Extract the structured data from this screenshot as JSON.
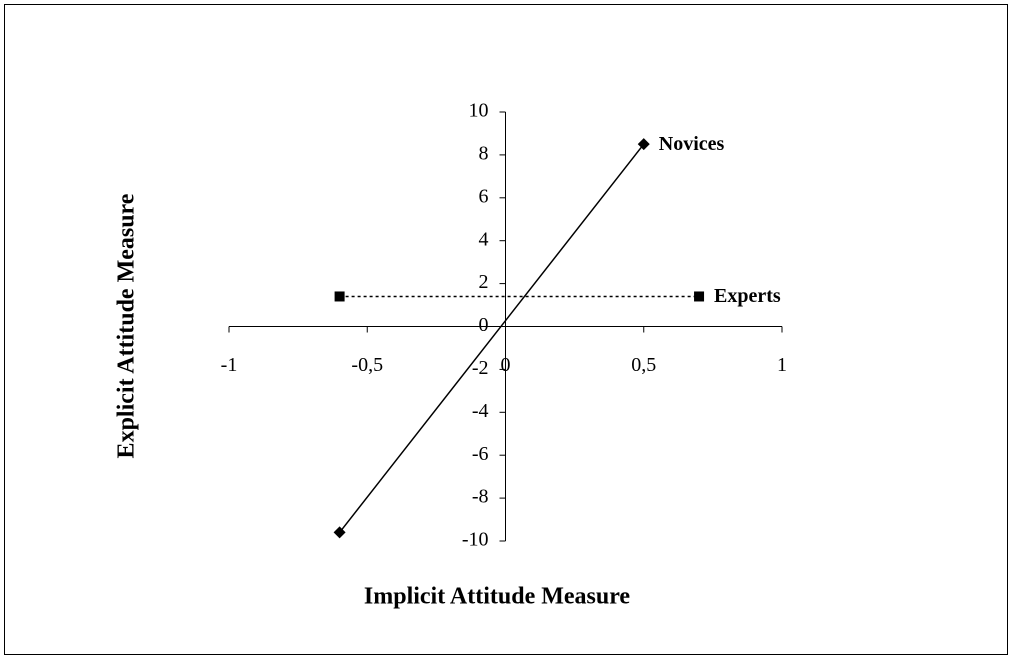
{
  "chart_data": {
    "type": "line",
    "xlabel": "Implicit Attitude Measure",
    "ylabel": "Explicit Attitude Measure",
    "xlim": [
      -1,
      1
    ],
    "xticks": [
      -1,
      {
        "value": -0.5,
        "label": "-0,5"
      },
      0,
      {
        "value": 0.5,
        "label": "0,5"
      },
      1
    ],
    "ylim": [
      -10,
      10
    ],
    "yticks": [
      -10,
      -8,
      -6,
      -4,
      -2,
      0,
      2,
      4,
      6,
      8,
      10
    ],
    "grid": false,
    "series": [
      {
        "name": "Novices",
        "color": "#000000",
        "marker": "diamond",
        "line_style": "solid",
        "x": [
          -0.6,
          0.5
        ],
        "values": [
          -9.6,
          8.5
        ]
      },
      {
        "name": "Experts",
        "color": "#000000",
        "marker": "square",
        "line_style": "dotted",
        "x": [
          -0.6,
          0.7
        ],
        "values": [
          1.4,
          1.4
        ]
      }
    ]
  }
}
